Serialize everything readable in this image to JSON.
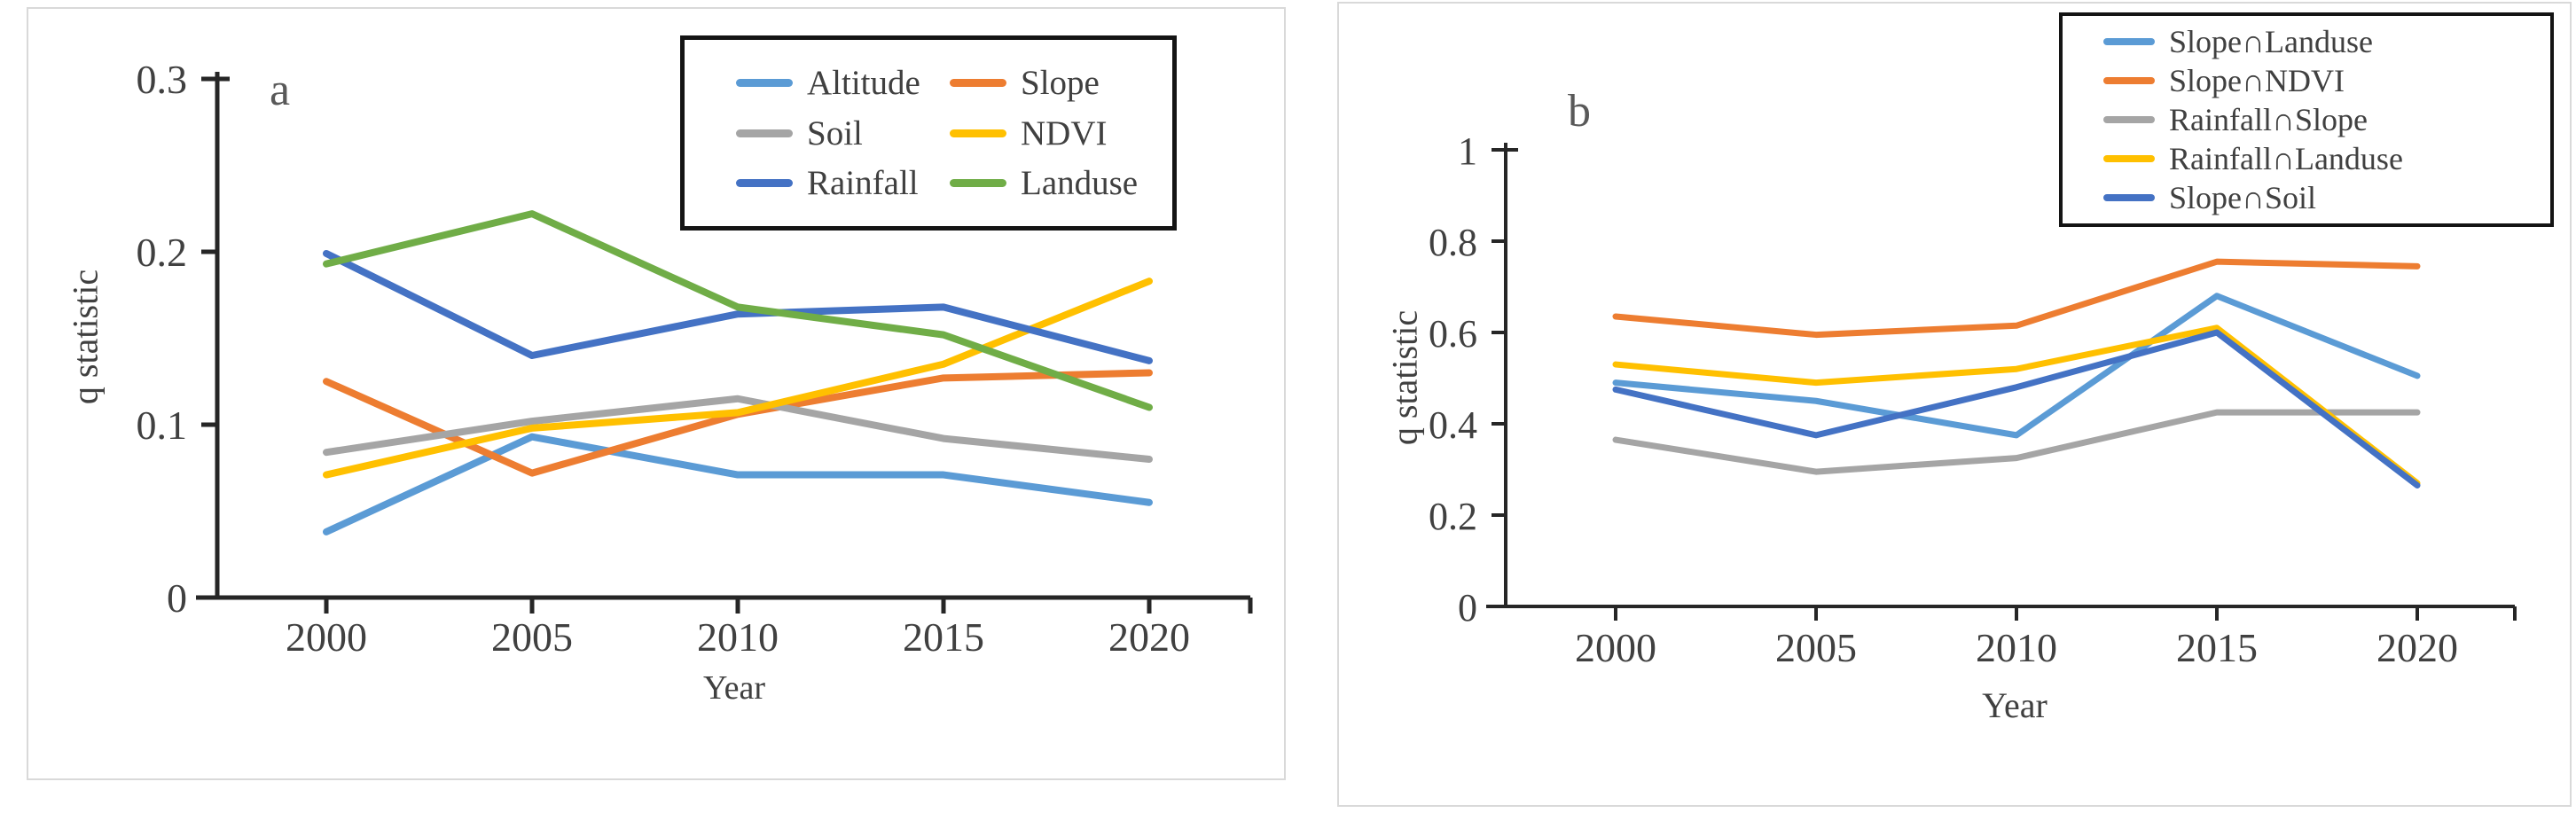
{
  "figure": {
    "description": "Two-panel line figure of q statistic by year",
    "text_color": "#404040",
    "axis_color": "#262626",
    "panel_border_color": "#d9d9d9"
  },
  "chart_data": [
    {
      "type": "line",
      "panel_label": "a",
      "title": "",
      "xlabel": "Year",
      "ylabel": "q statistic",
      "x": [
        2000,
        2005,
        2010,
        2015,
        2020
      ],
      "xtick_labels": [
        "2000",
        "2005",
        "2010",
        "2015",
        "2020"
      ],
      "ylim": [
        0,
        0.3
      ],
      "yticks": [
        0,
        0.1,
        0.2,
        0.3
      ],
      "ytick_labels": [
        "0",
        "0.1",
        "0.2",
        "0.3"
      ],
      "grid": false,
      "legend_position": "top-right-inside",
      "legend_columns": 2,
      "series": [
        {
          "name": "Altitude",
          "color": "#5B9BD5",
          "values": [
            0.038,
            0.093,
            0.071,
            0.071,
            0.055
          ]
        },
        {
          "name": "Slope",
          "color": "#ED7D31",
          "values": [
            0.125,
            0.072,
            0.106,
            0.127,
            0.13
          ]
        },
        {
          "name": "Soil",
          "color": "#A5A5A5",
          "values": [
            0.084,
            0.102,
            0.115,
            0.092,
            0.08
          ]
        },
        {
          "name": "NDVI",
          "color": "#FFC000",
          "values": [
            0.071,
            0.098,
            0.107,
            0.135,
            0.183
          ]
        },
        {
          "name": "Rainfall",
          "color": "#4472C4",
          "values": [
            0.199,
            0.14,
            0.164,
            0.168,
            0.137
          ]
        },
        {
          "name": "Landuse",
          "color": "#70AD47",
          "values": [
            0.193,
            0.222,
            0.168,
            0.152,
            0.11
          ]
        }
      ]
    },
    {
      "type": "line",
      "panel_label": "b",
      "title": "",
      "xlabel": "Year",
      "ylabel": "q statistic",
      "x": [
        2000,
        2005,
        2010,
        2015,
        2020
      ],
      "xtick_labels": [
        "2000",
        "2005",
        "2010",
        "2015",
        "2020"
      ],
      "ylim": [
        0,
        1
      ],
      "yticks": [
        0,
        0.2,
        0.4,
        0.6,
        0.8,
        1
      ],
      "ytick_labels": [
        "0",
        "0.2",
        "0.4",
        "0.6",
        "0.8",
        "1"
      ],
      "grid": false,
      "legend_position": "top-right-inside",
      "legend_columns": 1,
      "series": [
        {
          "name": "Slope∩Landuse",
          "color": "#5B9BD5",
          "values": [
            0.49,
            0.45,
            0.375,
            0.68,
            0.505
          ]
        },
        {
          "name": "Slope∩NDVI",
          "color": "#ED7D31",
          "values": [
            0.635,
            0.595,
            0.615,
            0.755,
            0.745
          ]
        },
        {
          "name": "Rainfall∩Slope",
          "color": "#A5A5A5",
          "values": [
            0.365,
            0.295,
            0.325,
            0.425,
            0.425
          ]
        },
        {
          "name": "Rainfall∩Landuse",
          "color": "#FFC000",
          "values": [
            0.53,
            0.49,
            0.52,
            0.61,
            0.27
          ]
        },
        {
          "name": "Slope∩Soil",
          "color": "#4472C4",
          "values": [
            0.475,
            0.375,
            0.48,
            0.6,
            0.265
          ]
        }
      ]
    }
  ]
}
